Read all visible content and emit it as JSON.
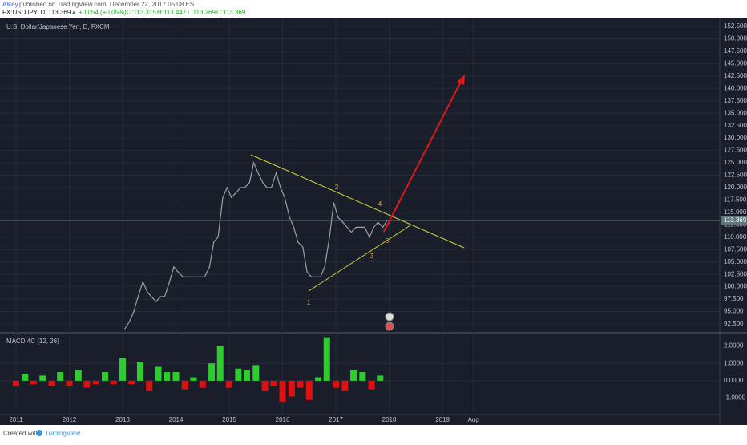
{
  "header": {
    "author": "Alkey",
    "published": "published on TradingView.com, December 22, 2017 05:08 EST",
    "symbol": "FX:USDJPY, D",
    "price": "113.369",
    "change": "▲ +0.054 (+0.05%)",
    "open": "O:113.315",
    "high": "H:113.447",
    "low": "L:113.269",
    "close": "C:113.369"
  },
  "footer": {
    "created": "Created with",
    "brand": "TradingView"
  },
  "chart_data": [
    {
      "type": "line",
      "title": "U.S. Dollar/Japanese Yen, D, FXCM",
      "color": "#9aa39c",
      "x": [
        2013.04,
        2013.13,
        2013.21,
        2013.29,
        2013.38,
        2013.46,
        2013.54,
        2013.63,
        2013.71,
        2013.79,
        2013.88,
        2013.96,
        2014.04,
        2014.13,
        2014.21,
        2014.29,
        2014.38,
        2014.46,
        2014.54,
        2014.63,
        2014.71,
        2014.79,
        2014.88,
        2014.96,
        2015.04,
        2015.13,
        2015.21,
        2015.29,
        2015.38,
        2015.46,
        2015.54,
        2015.63,
        2015.71,
        2015.79,
        2015.88,
        2015.96,
        2016.04,
        2016.13,
        2016.21,
        2016.29,
        2016.38,
        2016.46,
        2016.54,
        2016.63,
        2016.71,
        2016.79,
        2016.88,
        2016.96,
        2017.04,
        2017.13,
        2017.21,
        2017.29,
        2017.38,
        2017.46,
        2017.54,
        2017.63,
        2017.71,
        2017.79,
        2017.88,
        2017.96
      ],
      "values": [
        91.5,
        93,
        95,
        98,
        101,
        99,
        98,
        97,
        98,
        98,
        101,
        104,
        103,
        102,
        102,
        102,
        102,
        102,
        102,
        104,
        109,
        110,
        118,
        120,
        118,
        119,
        120,
        120,
        121,
        125,
        123,
        121,
        120,
        120,
        123,
        120,
        118,
        114,
        112,
        109,
        108,
        103,
        102,
        102,
        102,
        104,
        110,
        117,
        114,
        113,
        112,
        111,
        112,
        112,
        112,
        110,
        112,
        113,
        112,
        113.37
      ],
      "last_price": 113.369,
      "last_price_color": "#5d7a7a",
      "wave_labels": [
        "1",
        "2",
        "3",
        "4",
        "5"
      ],
      "xlim": [
        2010.7,
        2024.2
      ],
      "xticks": [
        2011,
        2012,
        2013,
        2014,
        2015,
        2016,
        2017,
        2018,
        2019,
        {
          "value": 2019.58,
          "label": "Aug"
        }
      ],
      "ylim": [
        90.72,
        154.28
      ],
      "yticks": [
        {
          "value": 92.5,
          "label": "92.500"
        },
        {
          "value": 95,
          "label": "95.000"
        },
        {
          "value": 97.5,
          "label": "97.500"
        },
        {
          "value": 100,
          "label": "100.000"
        },
        {
          "value": 102.5,
          "label": "102.500"
        },
        {
          "value": 105,
          "label": "105.000"
        },
        {
          "value": 107.5,
          "label": "107.500"
        },
        {
          "value": 110,
          "label": "110.000"
        },
        {
          "value": 112.5,
          "label": "112.500"
        },
        {
          "value": 115,
          "label": "115.000"
        },
        {
          "value": 117.5,
          "label": "117.500"
        },
        {
          "value": 120,
          "label": "120.000"
        },
        {
          "value": 122.5,
          "label": "122.500"
        },
        {
          "value": 125,
          "label": "125.000"
        },
        {
          "value": 127.5,
          "label": "127.500"
        },
        {
          "value": 130,
          "label": "130.000"
        },
        {
          "value": 132.5,
          "label": "132.500"
        },
        {
          "value": 135,
          "label": "135.000"
        },
        {
          "value": 137.5,
          "label": "137.500"
        },
        {
          "value": 140,
          "label": "140.000"
        },
        {
          "value": 142.5,
          "label": "142.500"
        },
        {
          "value": 145,
          "label": "145.000"
        },
        {
          "value": 147.5,
          "label": "147.500"
        },
        {
          "value": 150,
          "label": "150.000"
        },
        {
          "value": 152.5,
          "label": "152.500"
        }
      ],
      "grid": true
    },
    {
      "type": "bar",
      "title": "MACD 4C (12, 26)",
      "positive_color": "#2ecc2e",
      "negative_color": "#e01010",
      "x": [
        2011.0,
        2011.17,
        2011.33,
        2011.5,
        2011.67,
        2011.83,
        2012.0,
        2012.17,
        2012.33,
        2012.5,
        2012.67,
        2012.83,
        2013.0,
        2013.17,
        2013.33,
        2013.5,
        2013.67,
        2013.83,
        2014.0,
        2014.17,
        2014.33,
        2014.5,
        2014.67,
        2014.83,
        2015.0,
        2015.17,
        2015.33,
        2015.5,
        2015.67,
        2015.83,
        2016.0,
        2016.17,
        2016.33,
        2016.5,
        2016.67,
        2016.83,
        2017.0,
        2017.17,
        2017.33,
        2017.5,
        2017.67,
        2017.83
      ],
      "values": [
        -0.3,
        0.4,
        -0.2,
        0.3,
        -0.3,
        0.5,
        -0.3,
        0.6,
        -0.4,
        -0.2,
        0.5,
        -0.2,
        1.3,
        -0.2,
        1.1,
        -0.6,
        0.8,
        0.5,
        0.5,
        -0.5,
        0.2,
        -0.4,
        1.0,
        2.0,
        -0.4,
        0.7,
        0.6,
        0.9,
        -0.6,
        -0.3,
        -1.2,
        -0.9,
        -0.4,
        -1.1,
        0.2,
        2.5,
        -0.4,
        -0.6,
        0.6,
        0.5,
        -0.5,
        0.3
      ],
      "xlim": [
        2010.7,
        2024.2
      ],
      "xticks": [
        2011,
        2012,
        2013,
        2014,
        2015,
        2016,
        2017,
        2018,
        2019,
        {
          "value": 2019.58,
          "label": "Aug"
        }
      ],
      "ylim": [
        -1.94,
        2.76
      ],
      "yticks": [
        {
          "value": 2,
          "label": "2.0000"
        },
        {
          "value": 1,
          "label": "1.0000"
        },
        {
          "value": 0,
          "label": "0.0000"
        },
        {
          "value": -1,
          "label": "-1.0000"
        }
      ],
      "grid": true
    }
  ]
}
